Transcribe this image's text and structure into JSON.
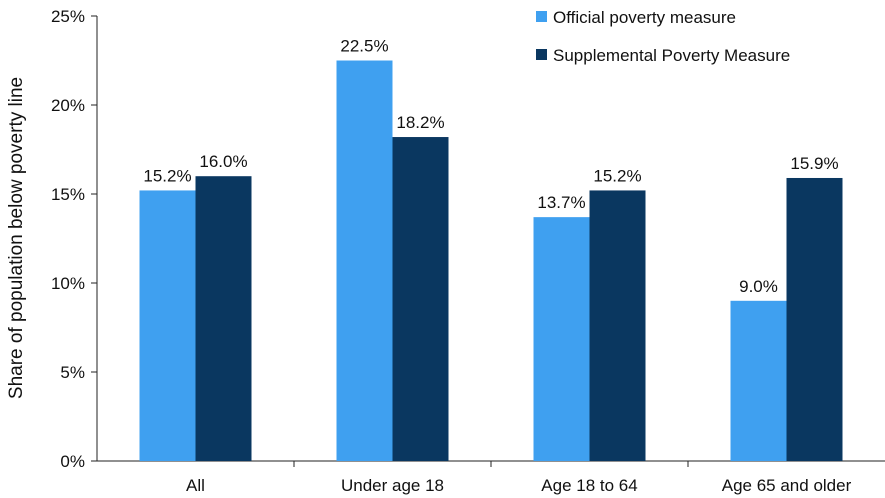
{
  "chart_data": {
    "type": "bar",
    "title": "",
    "xlabel": "",
    "ylabel": "Share of population below poverty line",
    "categories": [
      "All",
      "Under age 18",
      "Age 18 to 64",
      "Age 65 and older"
    ],
    "series": [
      {
        "name": "Official poverty measure",
        "color": "#3fa0f0",
        "values": [
          15.2,
          22.5,
          13.7,
          9.0
        ],
        "labels": [
          "15.2%",
          "22.5%",
          "13.7%",
          "9.0%"
        ]
      },
      {
        "name": "Supplemental Poverty Measure",
        "color": "#0a3760",
        "values": [
          16.0,
          18.2,
          15.2,
          15.9
        ],
        "labels": [
          "16.0%",
          "18.2%",
          "15.2%",
          "15.9%"
        ]
      }
    ],
    "ylim": [
      0,
      25
    ],
    "yticks": [
      0,
      5,
      10,
      15,
      20,
      25
    ],
    "ytick_labels": [
      "0%",
      "5%",
      "10%",
      "15%",
      "20%",
      "25%"
    ],
    "grid": false,
    "legend_position": "top-right"
  }
}
